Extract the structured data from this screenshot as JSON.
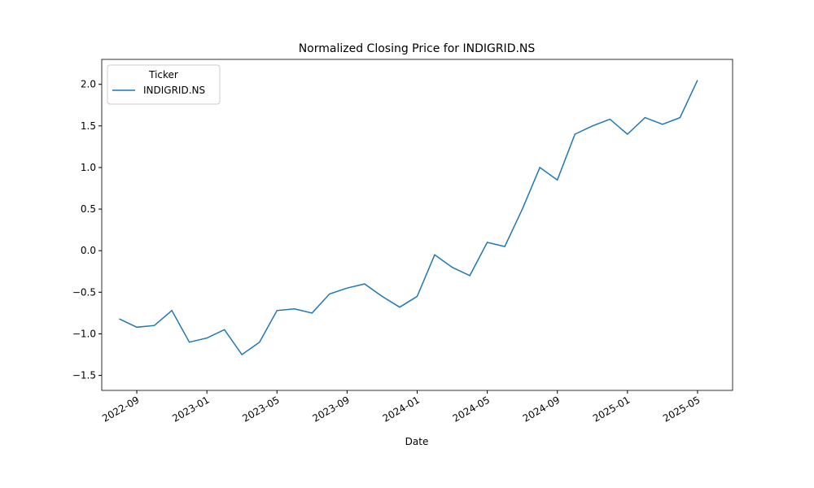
{
  "chart_data": {
    "type": "line",
    "title": "Normalized Closing Price for INDIGRID.NS",
    "x_label": "Date",
    "legend_title": "Ticker",
    "legend": "upper left",
    "x": [
      "2022-08",
      "2022-09",
      "2022-10",
      "2022-11",
      "2022-12",
      "2023-01",
      "2023-02",
      "2023-03",
      "2023-04",
      "2023-05",
      "2023-06",
      "2023-07",
      "2023-08",
      "2023-09",
      "2023-10",
      "2023-11",
      "2023-12",
      "2024-01",
      "2024-02",
      "2024-03",
      "2024-04",
      "2024-05",
      "2024-06",
      "2024-07",
      "2024-08",
      "2024-09",
      "2024-10",
      "2024-11",
      "2024-12",
      "2025-01",
      "2025-02",
      "2025-03",
      "2025-04",
      "2025-05"
    ],
    "series": [
      {
        "name": "INDIGRID.NS",
        "color": "#1f77b4",
        "values": [
          -0.82,
          -0.92,
          -0.9,
          -0.72,
          -1.1,
          -1.05,
          -0.95,
          -1.25,
          -1.1,
          -0.72,
          -0.7,
          -0.75,
          -0.52,
          -0.45,
          -0.4,
          -0.55,
          -0.68,
          -0.55,
          -0.05,
          -0.2,
          -0.3,
          0.1,
          0.05,
          0.5,
          1.0,
          0.85,
          1.4,
          1.5,
          1.58,
          1.4,
          1.6,
          1.52,
          1.6,
          2.05
        ]
      }
    ],
    "xlim": [
      "2022-07",
      "2025-07"
    ],
    "xticks": [
      "2022-09",
      "2023-01",
      "2023-05",
      "2023-09",
      "2024-01",
      "2024-05",
      "2024-09",
      "2025-01",
      "2025-05"
    ],
    "ylim": [
      -1.68,
      2.3
    ],
    "yticks": [
      -1.5,
      -1.0,
      -0.5,
      0.0,
      0.5,
      1.0,
      1.5,
      2.0
    ],
    "ytick_labels": [
      "−1.5",
      "−1.0",
      "−0.5",
      "0.0",
      "0.5",
      "1.0",
      "1.5",
      "2.0"
    ],
    "grid": false
  }
}
